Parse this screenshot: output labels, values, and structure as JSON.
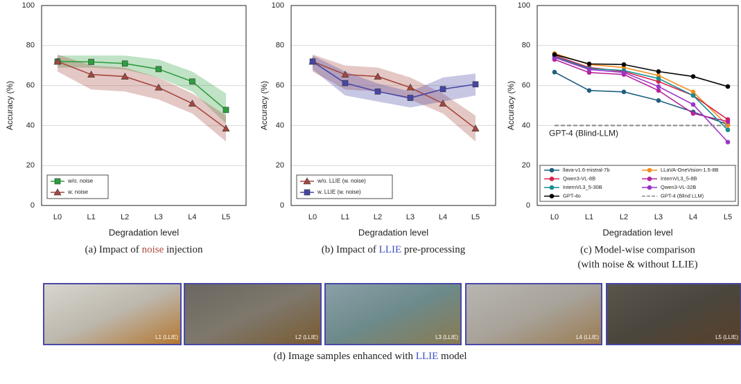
{
  "chart_data": [
    {
      "type": "line",
      "ylabel": "Accuracy (%)",
      "xlabel": "Degradation level",
      "categories": [
        "L0",
        "L1",
        "L2",
        "L3",
        "L4",
        "L5"
      ],
      "ylim": [
        0,
        100
      ],
      "yticks": [
        0,
        20,
        40,
        60,
        80,
        100
      ],
      "grid": true,
      "legend": "lower left",
      "caption": [
        "(a) Impact of ",
        "noise",
        " injection"
      ],
      "series": [
        {
          "name": "w/o. noise",
          "color": "#2e9e3e",
          "marker": "square",
          "values": [
            72,
            71.8,
            71,
            68.2,
            62,
            47.8
          ],
          "upper": [
            75,
            75,
            75,
            73,
            67,
            56
          ],
          "lower": [
            69,
            69,
            68,
            64,
            57,
            41
          ]
        },
        {
          "name": "w. noise",
          "color": "#a5483f",
          "marker": "triangle",
          "values": [
            72,
            65.5,
            64.5,
            59,
            51,
            38.5
          ],
          "upper": [
            75.5,
            70,
            69,
            64,
            56,
            45
          ],
          "lower": [
            67,
            58,
            57,
            53,
            46,
            32
          ]
        }
      ]
    },
    {
      "type": "line",
      "ylabel": "Accuracy (%)",
      "xlabel": "Degradation level",
      "categories": [
        "L0",
        "L1",
        "L2",
        "L3",
        "L4",
        "L5"
      ],
      "ylim": [
        0,
        100
      ],
      "yticks": [
        0,
        20,
        40,
        60,
        80,
        100
      ],
      "grid": true,
      "legend": "lower left",
      "caption": [
        "(b) Impact of ",
        "LLIE",
        " pre-processing"
      ],
      "series": [
        {
          "name": "w/o. LLIE (w. noise)",
          "color": "#a5483f",
          "marker": "triangle",
          "values": [
            72,
            65.5,
            64.5,
            59,
            51,
            38.5
          ],
          "upper": [
            75.5,
            70,
            69,
            64,
            56,
            45
          ],
          "lower": [
            67,
            58,
            57,
            53,
            46,
            32
          ]
        },
        {
          "name": "w. LLIE (w. noise)",
          "color": "#4646a6",
          "marker": "square",
          "values": [
            72,
            61.2,
            57,
            53.8,
            58.2,
            60.6
          ],
          "upper": [
            75,
            67,
            61,
            57,
            64,
            66
          ],
          "lower": [
            68,
            55,
            52,
            49,
            52,
            55
          ]
        }
      ]
    },
    {
      "type": "line",
      "ylabel": "Accuracy (%)",
      "xlabel": "Degradation level",
      "categories": [
        "L0",
        "L1",
        "L2",
        "L3",
        "L4",
        "L5"
      ],
      "ylim": [
        0,
        100
      ],
      "yticks": [
        0,
        20,
        40,
        60,
        80,
        100
      ],
      "grid": true,
      "legend": "lower center",
      "annotation": "GPT-4 (Blind-LLM)",
      "caption": [
        "(c) Model-wise comparison",
        "(with noise & without LLIE)"
      ],
      "series": [
        {
          "name": "llava-v1.6-mistral-7b",
          "color": "#1f5f80",
          "marker": "circle",
          "values": [
            66.7,
            57.5,
            56.8,
            52.5,
            46.8,
            40.5
          ]
        },
        {
          "name": "LLaVA-OneVision-1.5-8B",
          "color": "#f28e1e",
          "marker": "circle",
          "values": [
            76,
            70.5,
            69,
            65,
            56.8,
            40
          ]
        },
        {
          "name": "Qwen3-VL-8B",
          "color": "#d6204e",
          "marker": "circle",
          "values": [
            75,
            69,
            67,
            62,
            55,
            43
          ]
        },
        {
          "name": "InternVL3_5-8B",
          "color": "#b7229c",
          "marker": "circle",
          "values": [
            73,
            66.5,
            65.5,
            57.5,
            46,
            42
          ]
        },
        {
          "name": "InternVL3_5-30B",
          "color": "#178f8f",
          "marker": "circle",
          "values": [
            74.5,
            68.5,
            67.5,
            63.5,
            55,
            37.8
          ]
        },
        {
          "name": "Qwen3-VL-32B",
          "color": "#9b35c9",
          "marker": "circle",
          "values": [
            74,
            68,
            66.5,
            59.5,
            50.5,
            31.7
          ]
        },
        {
          "name": "GPT-4o",
          "color": "#000000",
          "marker": "circle",
          "values": [
            75.5,
            70.8,
            70.5,
            67,
            64.5,
            59.5
          ]
        },
        {
          "name": "GPT-4 (Blind LLM)",
          "color": "#888888",
          "marker": "none",
          "dash": true,
          "values": [
            40,
            40,
            40,
            40,
            40,
            40
          ]
        }
      ]
    }
  ],
  "images": {
    "labels": [
      "L1 (LLIE)",
      "L2 (LLIE)",
      "L3 (LLIE)",
      "L4 (LLIE)",
      "L5 (LLIE)"
    ],
    "caption": [
      "(d) Image samples enhanced with ",
      "LLIE",
      " model"
    ]
  }
}
